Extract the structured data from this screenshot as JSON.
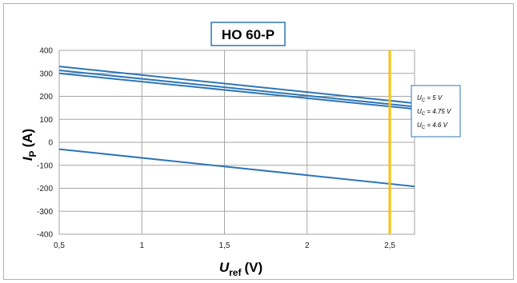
{
  "chart_data": {
    "type": "line",
    "title": "HO 60-P",
    "xlabel": {
      "symbol": "U",
      "subscript": "ref",
      "unit": "(V)"
    },
    "ylabel": {
      "symbol": "I",
      "subscript": "P",
      "unit": "(A)"
    },
    "xlim": [
      0.5,
      2.65
    ],
    "ylim": [
      -400,
      400
    ],
    "x_ticks": [
      "0,5",
      "1",
      "1,5",
      "2",
      "2,5"
    ],
    "x_tick_values": [
      0.5,
      1,
      1.5,
      2,
      2.5
    ],
    "y_ticks": [
      "400",
      "300",
      "200",
      "100",
      "0",
      "-100",
      "-200",
      "-300",
      "-400"
    ],
    "y_tick_values": [
      400,
      300,
      200,
      100,
      0,
      -100,
      -200,
      -300,
      -400
    ],
    "grid": true,
    "series": [
      {
        "x": [
          0.5,
          2.65
        ],
        "y": [
          330,
          170
        ],
        "color": "#2e75b6"
      },
      {
        "x": [
          0.5,
          2.65
        ],
        "y": [
          313,
          155
        ],
        "color": "#2e75b6"
      },
      {
        "x": [
          0.5,
          2.65
        ],
        "y": [
          300,
          145
        ],
        "color": "#2e75b6"
      },
      {
        "x": [
          0.5,
          2.65
        ],
        "y": [
          -30,
          -192
        ],
        "color": "#2e75b6"
      }
    ],
    "vertical_marker": {
      "x": 2.5,
      "color": "#ffc000"
    },
    "legend": {
      "placement": "right",
      "entries": [
        {
          "symbol": "U",
          "subscript": "C",
          "value": "= 5 V"
        },
        {
          "symbol": "U",
          "subscript": "C",
          "value": "= 4.75 V"
        },
        {
          "symbol": "U",
          "subscript": "C",
          "value": "= 4.6 V"
        }
      ]
    }
  }
}
